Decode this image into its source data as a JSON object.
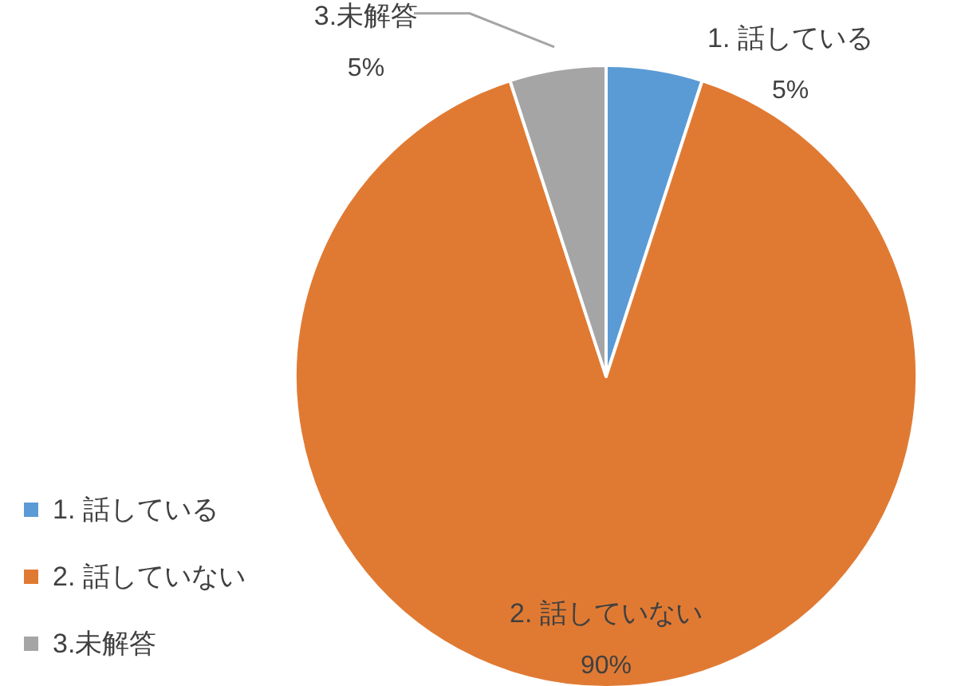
{
  "chart_data": {
    "type": "pie",
    "categories": [
      "1. 話している",
      "2. 話していない",
      "3.未解答"
    ],
    "values": [
      5,
      90,
      5
    ],
    "colors": [
      "#5b9bd5",
      "#e07a33",
      "#a5a5a5"
    ],
    "value_labels": [
      "5%",
      "90%",
      "5%"
    ],
    "legend": "bottom left"
  }
}
